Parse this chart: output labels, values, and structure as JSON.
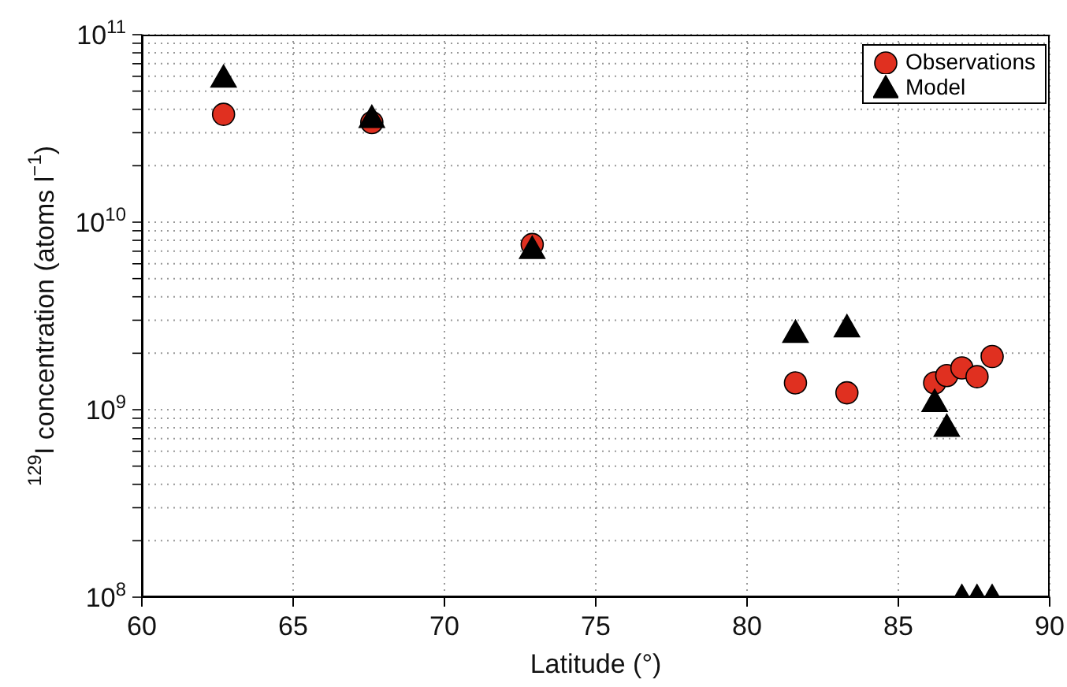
{
  "chart_data": {
    "type": "scatter",
    "xlabel": "Latitude (°)",
    "ylabel": "$^{129}$I concentration (atoms l$^{−1}$)",
    "xlim": [
      60,
      90
    ],
    "xticks": [
      60,
      65,
      70,
      75,
      80,
      85,
      90
    ],
    "ylim": [
      100000000,
      100000000000
    ],
    "log": "y",
    "grid": true,
    "legend": "top right",
    "yticks": [
      {
        "value": 100000000,
        "label": "10$^{8}$"
      },
      {
        "value": 200000000,
        "label": null
      },
      {
        "value": 300000000,
        "label": null
      },
      {
        "value": 400000000,
        "label": null
      },
      {
        "value": 500000000,
        "label": null
      },
      {
        "value": 600000000,
        "label": null
      },
      {
        "value": 700000000,
        "label": null
      },
      {
        "value": 800000000,
        "label": null
      },
      {
        "value": 900000000,
        "label": null
      },
      {
        "value": 1000000000,
        "label": "10$^{9}$"
      },
      {
        "value": 2000000000,
        "label": null
      },
      {
        "value": 3000000000,
        "label": null
      },
      {
        "value": 4000000000,
        "label": null
      },
      {
        "value": 5000000000,
        "label": null
      },
      {
        "value": 6000000000,
        "label": null
      },
      {
        "value": 7000000000,
        "label": null
      },
      {
        "value": 8000000000,
        "label": null
      },
      {
        "value": 9000000000,
        "label": null
      },
      {
        "value": 10000000000,
        "label": "10$^{10}$"
      },
      {
        "value": 20000000000,
        "label": null
      },
      {
        "value": 30000000000,
        "label": null
      },
      {
        "value": 40000000000,
        "label": null
      },
      {
        "value": 50000000000,
        "label": null
      },
      {
        "value": 60000000000,
        "label": null
      },
      {
        "value": 70000000000,
        "label": null
      },
      {
        "value": 80000000000,
        "label": null
      },
      {
        "value": 90000000000,
        "label": null
      },
      {
        "value": 100000000000,
        "label": "10$^{11}$"
      }
    ],
    "series": [
      {
        "name": "Observations",
        "color": "#e03020",
        "marker": "circle",
        "x": [
          62.7,
          67.6,
          72.9,
          81.6,
          83.3,
          86.2,
          86.6,
          87.1,
          87.6,
          88.1
        ],
        "values": [
          37600000000,
          34000000000,
          7600000000,
          1390000000,
          1230000000,
          1390000000,
          1520000000,
          1670000000,
          1500000000,
          1920000000
        ]
      },
      {
        "name": "Model",
        "color": "#000000",
        "marker": "triangle",
        "x": [
          62.7,
          67.6,
          72.9,
          81.6,
          83.3,
          86.2,
          86.6,
          87.1,
          87.6,
          88.1
        ],
        "values": [
          59000000000,
          36000000000,
          7200000000,
          2570000000,
          2750000000,
          1100000000,
          810000000,
          100000000,
          100000000,
          100000000
        ]
      }
    ]
  }
}
